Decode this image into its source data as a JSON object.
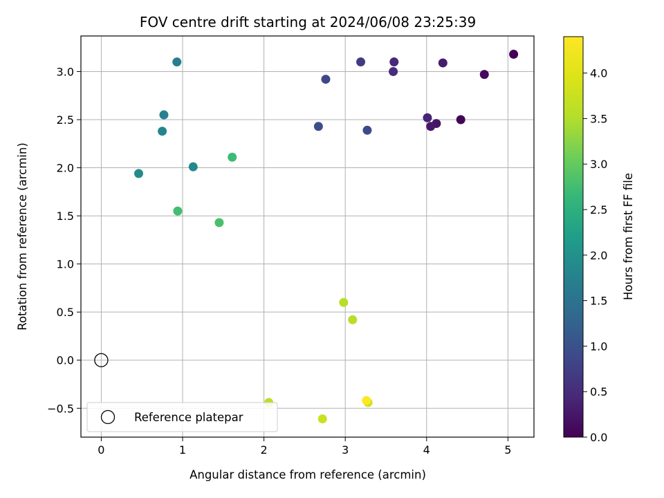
{
  "chart_data": {
    "type": "scatter",
    "title": "FOV centre drift starting at 2024/06/08 23:25:39",
    "xlabel": "Angular distance from reference (arcmin)",
    "ylabel": "Rotation from reference (arcmin)",
    "xlim": [
      -0.25,
      5.32
    ],
    "ylim": [
      -0.8,
      3.37
    ],
    "xticks": [
      0,
      1,
      2,
      3,
      4,
      5
    ],
    "xtick_labels": [
      "0",
      "1",
      "2",
      "3",
      "4",
      "5"
    ],
    "yticks": [
      -0.5,
      0.0,
      0.5,
      1.0,
      1.5,
      2.0,
      2.5,
      3.0
    ],
    "ytick_labels": [
      "−0.5",
      "0.0",
      "0.5",
      "1.0",
      "1.5",
      "2.0",
      "2.5",
      "3.0"
    ],
    "grid": true,
    "colorbar": {
      "label": "Hours from first FF file",
      "colormap": "viridis",
      "range": [
        0,
        4.4
      ],
      "ticks": [
        0.0,
        0.5,
        1.0,
        1.5,
        2.0,
        2.5,
        3.0,
        3.5,
        4.0
      ],
      "tick_labels": [
        "0.0",
        "0.5",
        "1.0",
        "1.5",
        "2.0",
        "2.5",
        "3.0",
        "3.5",
        "4.0"
      ]
    },
    "legend": {
      "position": "lower-left",
      "entries": [
        "Reference platepar"
      ]
    },
    "reference_point": {
      "x": 0.0,
      "y": 0.0
    },
    "points": [
      {
        "x": 5.07,
        "y": 3.18,
        "hours": 0.0
      },
      {
        "x": 4.42,
        "y": 2.5,
        "hours": 0.05
      },
      {
        "x": 4.71,
        "y": 2.97,
        "hours": 0.1
      },
      {
        "x": 4.12,
        "y": 2.46,
        "hours": 0.2
      },
      {
        "x": 4.05,
        "y": 2.43,
        "hours": 0.25
      },
      {
        "x": 4.2,
        "y": 3.09,
        "hours": 0.3
      },
      {
        "x": 4.01,
        "y": 2.52,
        "hours": 0.4
      },
      {
        "x": 3.6,
        "y": 3.1,
        "hours": 0.45
      },
      {
        "x": 3.59,
        "y": 3.0,
        "hours": 0.5
      },
      {
        "x": 3.19,
        "y": 3.1,
        "hours": 0.7
      },
      {
        "x": 2.76,
        "y": 2.92,
        "hours": 0.85
      },
      {
        "x": 3.27,
        "y": 2.39,
        "hours": 0.9
      },
      {
        "x": 2.67,
        "y": 2.43,
        "hours": 0.95
      },
      {
        "x": 0.93,
        "y": 3.1,
        "hours": 1.7
      },
      {
        "x": 0.77,
        "y": 2.55,
        "hours": 1.75
      },
      {
        "x": 0.75,
        "y": 2.38,
        "hours": 1.8
      },
      {
        "x": 1.13,
        "y": 2.01,
        "hours": 1.85
      },
      {
        "x": 0.46,
        "y": 1.94,
        "hours": 1.9
      },
      {
        "x": 1.61,
        "y": 2.11,
        "hours": 2.7
      },
      {
        "x": 0.94,
        "y": 1.55,
        "hours": 2.75
      },
      {
        "x": 1.45,
        "y": 1.43,
        "hours": 2.8
      },
      {
        "x": 2.98,
        "y": 0.6,
        "hours": 3.55
      },
      {
        "x": 3.09,
        "y": 0.42,
        "hours": 3.55
      },
      {
        "x": 2.06,
        "y": -0.44,
        "hours": 3.6
      },
      {
        "x": 2.72,
        "y": -0.61,
        "hours": 3.75
      },
      {
        "x": 3.28,
        "y": -0.44,
        "hours": 3.75
      },
      {
        "x": 3.26,
        "y": -0.42,
        "hours": 4.4
      }
    ]
  }
}
